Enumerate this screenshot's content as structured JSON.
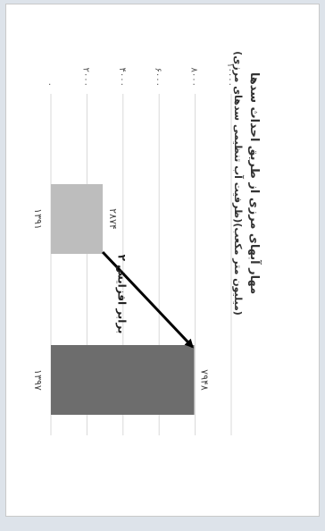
{
  "chart_data": {
    "type": "bar",
    "orientation": "rotated-90-clockwise",
    "title": "مهار آبهای مرزی از طریق احداث سدها",
    "subtitle": "(ظرفیت آب تنظیمی سدهای مرزی)(میلیون متر مکعب)",
    "categories": [
      "۱۳۹۱",
      "۱۳۹۷"
    ],
    "values": [
      2874,
      7948
    ],
    "data_labels": [
      "۲۸۷۴",
      "۷۹۴۸"
    ],
    "ylim": [
      0,
      10000
    ],
    "y_ticks": [
      0,
      2000,
      4000,
      6000,
      8000,
      10000
    ],
    "y_tick_labels": [
      "۰",
      "۲۰۰۰",
      "۴۰۰۰",
      "۶۰۰۰",
      "۸۰۰۰",
      "۱۰۰۰۰"
    ],
    "grid": true,
    "annotation": "۲ برابر افزایش",
    "colors": [
      "#bdbdbd",
      "#6d6d6d"
    ],
    "gridline_color": "#d9d9d9",
    "arrow_color": "#000000"
  }
}
